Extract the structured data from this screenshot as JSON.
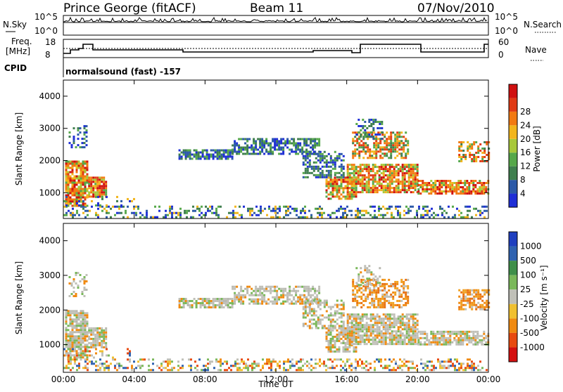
{
  "header": {
    "station": "Prince George (fitACF)",
    "beam": "Beam 11",
    "date": "07/Nov/2010"
  },
  "strip_panels": {
    "noise": {
      "left_label": "N.Sky",
      "right_label": "N.Search",
      "left_ticks": [
        "10^5",
        "10^0"
      ],
      "right_ticks": [
        "10^5",
        "10^0"
      ]
    },
    "freq": {
      "left_label_line1": "Freq.",
      "left_label_line2": "[MHz]",
      "right_label": "Nave",
      "left_ticks": [
        "18",
        "8"
      ],
      "right_ticks": [
        "60",
        "0"
      ]
    },
    "cpid": {
      "label": "CPID",
      "value": "normalsound (fast) -157"
    }
  },
  "chart_data": [
    {
      "type": "heatmap",
      "panel": "power",
      "ylabel": "Slant Range [km]",
      "yticks": [
        "1000",
        "2000",
        "3000",
        "4000"
      ],
      "ylim": [
        200,
        4500
      ],
      "colorbar": {
        "label": "Power [dB]",
        "ticks": [
          "4",
          "8",
          "12",
          "16",
          "20",
          "24",
          "28"
        ],
        "colors": [
          "#1f2fd6",
          "#2c5aa8",
          "#3f7f4e",
          "#56a84a",
          "#a8c83a",
          "#f2b51c",
          "#f27a12",
          "#e03a14",
          "#d01010"
        ]
      }
    },
    {
      "type": "heatmap",
      "panel": "velocity",
      "ylabel": "Slant Range [km]",
      "yticks": [
        "1000",
        "2000",
        "3000",
        "4000"
      ],
      "ylim": [
        200,
        4500
      ],
      "colorbar": {
        "label": "Velocity [m s⁻¹]",
        "ticks": [
          "1000",
          "500",
          "100",
          "25",
          "-25",
          "-100",
          "-500",
          "-1000"
        ],
        "colors": [
          "#1f3fbf",
          "#2f62b0",
          "#3f8f4a",
          "#7ab85a",
          "#c0c0b8",
          "#f0c030",
          "#f08a10",
          "#e84a10",
          "#d41010"
        ]
      }
    }
  ],
  "x_axis": {
    "label": "Time UT",
    "ticks": [
      "00:00",
      "04:00",
      "08:00",
      "12:00",
      "16:00",
      "20:00",
      "00:00"
    ]
  }
}
